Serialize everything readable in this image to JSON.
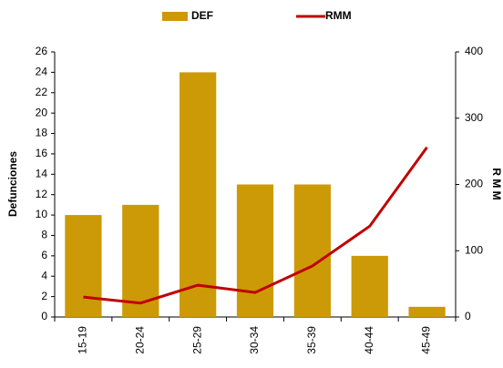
{
  "chart_data": {
    "type": "bar",
    "categories": [
      "15-19",
      "20-24",
      "25-29",
      "30-34",
      "35-39",
      "40-44",
      "45-49"
    ],
    "series": [
      {
        "name": "DEF",
        "type": "bar",
        "color": "#cc9a06",
        "values": [
          10,
          11,
          24,
          13,
          13,
          6,
          1
        ]
      },
      {
        "name": "RMM",
        "type": "line",
        "axis": "y2",
        "color": "#c00000",
        "values": [
          30,
          21,
          48,
          37,
          77,
          137,
          256
        ]
      }
    ],
    "ylabel": "Defunciones",
    "y2label": "R M M",
    "ylim": [
      0,
      26
    ],
    "yticks": [
      0,
      2,
      4,
      6,
      8,
      10,
      12,
      14,
      16,
      18,
      20,
      22,
      24,
      26
    ],
    "y2lim": [
      0,
      400
    ],
    "y2ticks": [
      0,
      100,
      200,
      300,
      400
    ],
    "legend": "top"
  }
}
